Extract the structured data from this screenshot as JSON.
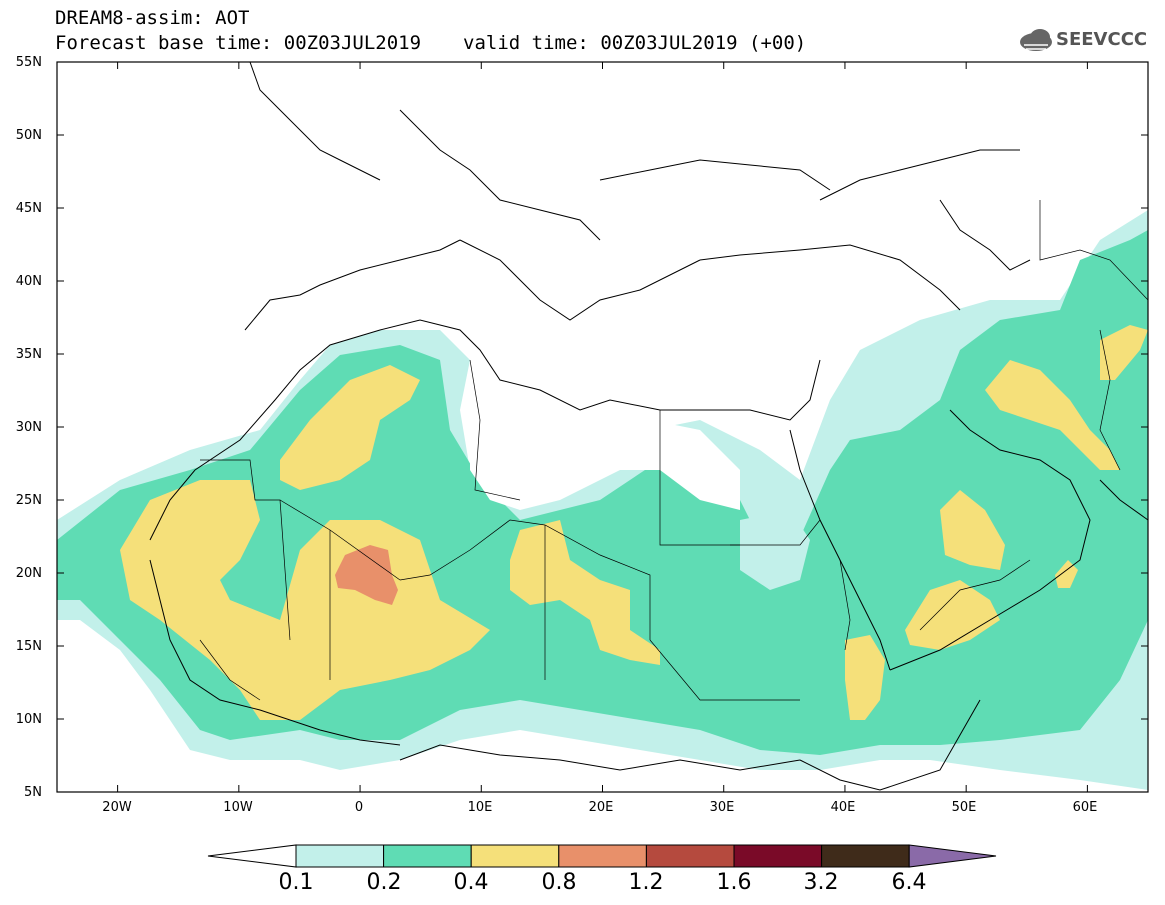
{
  "header": {
    "title_line1": "DREAM8-assim: AOT",
    "base_time": "Forecast base time: 00Z03JUL2019",
    "valid_time": "valid time: 00Z03JUL2019 (+00)",
    "logo_text": "SEEVCCC"
  },
  "map": {
    "lat_labels": [
      "55N",
      "50N",
      "45N",
      "40N",
      "35N",
      "30N",
      "25N",
      "20N",
      "15N",
      "10N",
      "5N"
    ],
    "lon_labels": [
      "20W",
      "10W",
      "0",
      "10E",
      "20E",
      "30E",
      "40E",
      "50E",
      "60E"
    ],
    "extent": {
      "lon": [
        -25,
        65
      ],
      "lat": [
        5,
        55
      ]
    }
  },
  "colorbar": {
    "labels": [
      "0.1",
      "0.2",
      "0.4",
      "0.8",
      "1.2",
      "1.6",
      "3.2",
      "6.4"
    ],
    "colors": [
      "#ffffff",
      "#c2f0ea",
      "#5fdcb4",
      "#f5e07a",
      "#e8906a",
      "#b54a3e",
      "#7a0a28",
      "#3f2b1a",
      "#8a6aa8"
    ]
  }
}
